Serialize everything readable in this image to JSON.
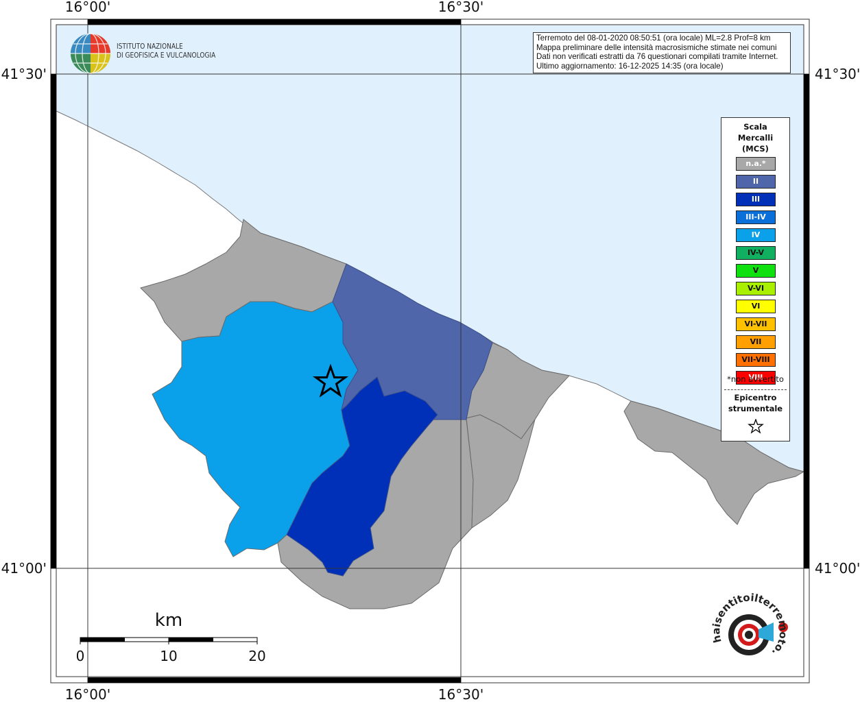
{
  "info": {
    "line1": "Terremoto del 08-01-2020 08:50:51 (ora locale) ML=2.8 Prof=8 km",
    "line2": "Mappa preliminare delle intensità macrosismiche stimate nei comuni",
    "line3": "Dati non verificati estratti da 76 questionari compilati tramite Internet.",
    "line4": "Ultimo aggiornamento: 16-12-2025 14:35 (ora locale)"
  },
  "ingv": {
    "line1": "ISTITUTO NAZIONALE",
    "line2": "DI GEOFISICA E VULCANOLOGIA"
  },
  "coords": {
    "lon_left": "16°00'",
    "lon_right": "16°30'",
    "lat_top": "41°30'",
    "lat_bottom": "41°00'"
  },
  "scale_bar": {
    "unit": "km",
    "labels": [
      "0",
      "10",
      "20"
    ]
  },
  "legend": {
    "title": "Scala\nMercalli\n(MCS)",
    "items": [
      {
        "label": "n.a.*",
        "color": "#a8a8a8",
        "text_color": "#ffffff"
      },
      {
        "label": "II",
        "color": "#4f66ab",
        "text_color": "#ffffff"
      },
      {
        "label": "III",
        "color": "#0030b8",
        "text_color": "#ffffff"
      },
      {
        "label": "III-IV",
        "color": "#0a6fd8",
        "text_color": "#ffffff"
      },
      {
        "label": "IV",
        "color": "#0aa0ea",
        "text_color": "#ffffff"
      },
      {
        "label": "IV-V",
        "color": "#10b060",
        "text_color": "#111111"
      },
      {
        "label": "V",
        "color": "#10e010",
        "text_color": "#111111"
      },
      {
        "label": "V-VI",
        "color": "#a8f000",
        "text_color": "#111111"
      },
      {
        "label": "VI",
        "color": "#ffff00",
        "text_color": "#111111"
      },
      {
        "label": "VI-VII",
        "color": "#ffc000",
        "text_color": "#111111"
      },
      {
        "label": "VII",
        "color": "#ffa000",
        "text_color": "#111111"
      },
      {
        "label": "VII-VIII",
        "color": "#ff7000",
        "text_color": "#111111"
      },
      {
        "label": "VIII",
        "color": "#ff0000",
        "text_color": "#ffffff"
      }
    ],
    "note": "*non avvertito",
    "epicenter_label": "Epicentro\nstrumentale"
  },
  "logo_text": "haisentitoilterremoto.it",
  "colors": {
    "sea": "#e0f0fc",
    "land_na": "#a8a8a8",
    "int_II": "#4f66ab",
    "int_III": "#0030b8",
    "int_IV": "#0aa0ea"
  }
}
